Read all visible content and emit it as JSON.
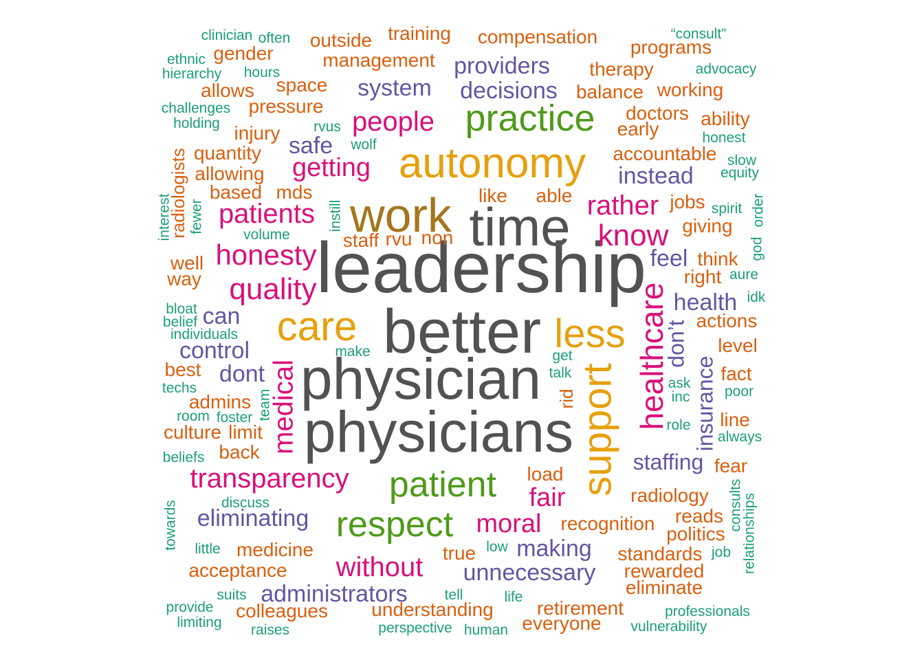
{
  "colors": {
    "gray": "#525252",
    "brown": "#a6761d",
    "gold": "#e6a00c",
    "green": "#4f9a1a",
    "magenta": "#d9107a",
    "purple": "#6355a3",
    "orange": "#d95f0e",
    "teal": "#1b9e77"
  },
  "words": [
    {
      "text": "leadership",
      "freq": 100,
      "color": "gray"
    },
    {
      "text": "better",
      "freq": 90,
      "color": "gray"
    },
    {
      "text": "physician",
      "freq": 82,
      "color": "gray"
    },
    {
      "text": "physicians",
      "freq": 82,
      "color": "gray"
    },
    {
      "text": "time",
      "freq": 72,
      "color": "gray"
    },
    {
      "text": "work",
      "freq": 66,
      "color": "brown"
    },
    {
      "text": "autonomy",
      "freq": 60,
      "color": "gold"
    },
    {
      "text": "care",
      "freq": 54,
      "color": "gold"
    },
    {
      "text": "less",
      "freq": 54,
      "color": "gold"
    },
    {
      "text": "support",
      "freq": 54,
      "color": "gold"
    },
    {
      "text": "practice",
      "freq": 50,
      "color": "green"
    },
    {
      "text": "patient",
      "freq": 50,
      "color": "green"
    },
    {
      "text": "respect",
      "freq": 50,
      "color": "green"
    },
    {
      "text": "healthcare",
      "freq": 42,
      "color": "magenta"
    },
    {
      "text": "honesty",
      "freq": 38,
      "color": "magenta"
    },
    {
      "text": "quality",
      "freq": 40,
      "color": "magenta"
    },
    {
      "text": "know",
      "freq": 40,
      "color": "magenta"
    },
    {
      "text": "transparency",
      "freq": 38,
      "color": "magenta"
    },
    {
      "text": "without",
      "freq": 38,
      "color": "magenta"
    },
    {
      "text": "people",
      "freq": 38,
      "color": "magenta"
    },
    {
      "text": "patients",
      "freq": 38,
      "color": "magenta"
    },
    {
      "text": "medical",
      "freq": 38,
      "color": "magenta"
    },
    {
      "text": "rather",
      "freq": 38,
      "color": "magenta"
    },
    {
      "text": "getting",
      "freq": 36,
      "color": "magenta"
    },
    {
      "text": "moral",
      "freq": 36,
      "color": "magenta"
    },
    {
      "text": "fair",
      "freq": 36,
      "color": "magenta"
    },
    {
      "text": "decisions",
      "freq": 32,
      "color": "purple"
    },
    {
      "text": "system",
      "freq": 32,
      "color": "purple"
    },
    {
      "text": "providers",
      "freq": 32,
      "color": "purple"
    },
    {
      "text": "instead",
      "freq": 32,
      "color": "purple"
    },
    {
      "text": "safe",
      "freq": 32,
      "color": "purple"
    },
    {
      "text": "feel",
      "freq": 32,
      "color": "purple"
    },
    {
      "text": "health",
      "freq": 32,
      "color": "purple"
    },
    {
      "text": "can",
      "freq": 32,
      "color": "purple"
    },
    {
      "text": "control",
      "freq": 32,
      "color": "purple"
    },
    {
      "text": "dont",
      "freq": 32,
      "color": "purple"
    },
    {
      "text": "don’t",
      "freq": 32,
      "color": "purple"
    },
    {
      "text": "insurance",
      "freq": 32,
      "color": "purple"
    },
    {
      "text": "staffing",
      "freq": 32,
      "color": "purple"
    },
    {
      "text": "eliminating",
      "freq": 32,
      "color": "purple"
    },
    {
      "text": "making",
      "freq": 32,
      "color": "purple"
    },
    {
      "text": "unnecessary",
      "freq": 32,
      "color": "purple"
    },
    {
      "text": "administrators",
      "freq": 32,
      "color": "purple"
    },
    {
      "text": "training",
      "freq": 26,
      "color": "orange"
    },
    {
      "text": "compensation",
      "freq": 26,
      "color": "orange"
    },
    {
      "text": "outside",
      "freq": 26,
      "color": "orange"
    },
    {
      "text": "management",
      "freq": 26,
      "color": "orange"
    },
    {
      "text": "programs",
      "freq": 26,
      "color": "orange"
    },
    {
      "text": "gender",
      "freq": 26,
      "color": "orange"
    },
    {
      "text": "therapy",
      "freq": 26,
      "color": "orange"
    },
    {
      "text": "allows",
      "freq": 26,
      "color": "orange"
    },
    {
      "text": "space",
      "freq": 26,
      "color": "orange"
    },
    {
      "text": "balance",
      "freq": 26,
      "color": "orange"
    },
    {
      "text": "working",
      "freq": 26,
      "color": "orange"
    },
    {
      "text": "pressure",
      "freq": 26,
      "color": "orange"
    },
    {
      "text": "doctors",
      "freq": 26,
      "color": "orange"
    },
    {
      "text": "ability",
      "freq": 26,
      "color": "orange"
    },
    {
      "text": "injury",
      "freq": 26,
      "color": "orange"
    },
    {
      "text": "early",
      "freq": 26,
      "color": "orange"
    },
    {
      "text": "quantity",
      "freq": 26,
      "color": "orange"
    },
    {
      "text": "accountable",
      "freq": 26,
      "color": "orange"
    },
    {
      "text": "allowing",
      "freq": 26,
      "color": "orange"
    },
    {
      "text": "radiologists",
      "freq": 26,
      "color": "orange"
    },
    {
      "text": "based",
      "freq": 26,
      "color": "orange"
    },
    {
      "text": "mds",
      "freq": 26,
      "color": "orange"
    },
    {
      "text": "like",
      "freq": 26,
      "color": "orange"
    },
    {
      "text": "able",
      "freq": 26,
      "color": "orange"
    },
    {
      "text": "jobs",
      "freq": 26,
      "color": "orange"
    },
    {
      "text": "giving",
      "freq": 26,
      "color": "orange"
    },
    {
      "text": "staff",
      "freq": 26,
      "color": "orange"
    },
    {
      "text": "rvu",
      "freq": 26,
      "color": "orange"
    },
    {
      "text": "non",
      "freq": 26,
      "color": "orange"
    },
    {
      "text": "well",
      "freq": 26,
      "color": "orange"
    },
    {
      "text": "think",
      "freq": 26,
      "color": "orange"
    },
    {
      "text": "way",
      "freq": 26,
      "color": "orange"
    },
    {
      "text": "right",
      "freq": 26,
      "color": "orange"
    },
    {
      "text": "actions",
      "freq": 26,
      "color": "orange"
    },
    {
      "text": "level",
      "freq": 26,
      "color": "orange"
    },
    {
      "text": "best",
      "freq": 26,
      "color": "orange"
    },
    {
      "text": "fact",
      "freq": 26,
      "color": "orange"
    },
    {
      "text": "admins",
      "freq": 26,
      "color": "orange"
    },
    {
      "text": "rid",
      "freq": 26,
      "color": "orange"
    },
    {
      "text": "culture",
      "freq": 26,
      "color": "orange"
    },
    {
      "text": "limit",
      "freq": 26,
      "color": "orange"
    },
    {
      "text": "line",
      "freq": 26,
      "color": "orange"
    },
    {
      "text": "back",
      "freq": 26,
      "color": "orange"
    },
    {
      "text": "fear",
      "freq": 26,
      "color": "orange"
    },
    {
      "text": "load",
      "freq": 26,
      "color": "orange"
    },
    {
      "text": "radiology",
      "freq": 26,
      "color": "orange"
    },
    {
      "text": "reads",
      "freq": 26,
      "color": "orange"
    },
    {
      "text": "recognition",
      "freq": 26,
      "color": "orange"
    },
    {
      "text": "politics",
      "freq": 26,
      "color": "orange"
    },
    {
      "text": "medicine",
      "freq": 26,
      "color": "orange"
    },
    {
      "text": "true",
      "freq": 26,
      "color": "orange"
    },
    {
      "text": "standards",
      "freq": 26,
      "color": "orange"
    },
    {
      "text": "acceptance",
      "freq": 26,
      "color": "orange"
    },
    {
      "text": "rewarded",
      "freq": 26,
      "color": "orange"
    },
    {
      "text": "eliminate",
      "freq": 26,
      "color": "orange"
    },
    {
      "text": "colleagues",
      "freq": 26,
      "color": "orange"
    },
    {
      "text": "understanding",
      "freq": 26,
      "color": "orange"
    },
    {
      "text": "retirement",
      "freq": 26,
      "color": "orange"
    },
    {
      "text": "everyone",
      "freq": 26,
      "color": "orange"
    },
    {
      "text": "clinician",
      "freq": 20,
      "color": "teal"
    },
    {
      "text": "often",
      "freq": 20,
      "color": "teal"
    },
    {
      "text": "“consult”",
      "freq": 20,
      "color": "teal"
    },
    {
      "text": "ethnic",
      "freq": 20,
      "color": "teal"
    },
    {
      "text": "hierarchy",
      "freq": 20,
      "color": "teal"
    },
    {
      "text": "hours",
      "freq": 20,
      "color": "teal"
    },
    {
      "text": "advocacy",
      "freq": 20,
      "color": "teal"
    },
    {
      "text": "challenges",
      "freq": 20,
      "color": "teal"
    },
    {
      "text": "holding",
      "freq": 20,
      "color": "teal"
    },
    {
      "text": "rvus",
      "freq": 20,
      "color": "teal"
    },
    {
      "text": "wolf",
      "freq": 20,
      "color": "teal"
    },
    {
      "text": "honest",
      "freq": 20,
      "color": "teal"
    },
    {
      "text": "slow",
      "freq": 20,
      "color": "teal"
    },
    {
      "text": "equity",
      "freq": 20,
      "color": "teal"
    },
    {
      "text": "interest",
      "freq": 20,
      "color": "teal"
    },
    {
      "text": "fewer",
      "freq": 20,
      "color": "teal"
    },
    {
      "text": "instill",
      "freq": 20,
      "color": "teal"
    },
    {
      "text": "volume",
      "freq": 20,
      "color": "teal"
    },
    {
      "text": "spirit",
      "freq": 20,
      "color": "teal"
    },
    {
      "text": "god",
      "freq": 20,
      "color": "teal"
    },
    {
      "text": "order",
      "freq": 20,
      "color": "teal"
    },
    {
      "text": "aure",
      "freq": 20,
      "color": "teal"
    },
    {
      "text": "idk",
      "freq": 20,
      "color": "teal"
    },
    {
      "text": "bloat",
      "freq": 20,
      "color": "teal"
    },
    {
      "text": "belief",
      "freq": 20,
      "color": "teal"
    },
    {
      "text": "individuals",
      "freq": 20,
      "color": "teal"
    },
    {
      "text": "make",
      "freq": 20,
      "color": "teal"
    },
    {
      "text": "get",
      "freq": 20,
      "color": "teal"
    },
    {
      "text": "talk",
      "freq": 20,
      "color": "teal"
    },
    {
      "text": "techs",
      "freq": 20,
      "color": "teal"
    },
    {
      "text": "ask",
      "freq": 20,
      "color": "teal"
    },
    {
      "text": "inc",
      "freq": 20,
      "color": "teal"
    },
    {
      "text": "poor",
      "freq": 20,
      "color": "teal"
    },
    {
      "text": "team",
      "freq": 20,
      "color": "teal"
    },
    {
      "text": "room",
      "freq": 20,
      "color": "teal"
    },
    {
      "text": "foster",
      "freq": 20,
      "color": "teal"
    },
    {
      "text": "role",
      "freq": 20,
      "color": "teal"
    },
    {
      "text": "always",
      "freq": 20,
      "color": "teal"
    },
    {
      "text": "beliefs",
      "freq": 20,
      "color": "teal"
    },
    {
      "text": "consults",
      "freq": 20,
      "color": "teal"
    },
    {
      "text": "relationships",
      "freq": 20,
      "color": "teal"
    },
    {
      "text": "towards",
      "freq": 20,
      "color": "teal"
    },
    {
      "text": "discuss",
      "freq": 20,
      "color": "teal"
    },
    {
      "text": "little",
      "freq": 20,
      "color": "teal"
    },
    {
      "text": "low",
      "freq": 20,
      "color": "teal"
    },
    {
      "text": "job",
      "freq": 20,
      "color": "teal"
    },
    {
      "text": "suits",
      "freq": 20,
      "color": "teal"
    },
    {
      "text": "tell",
      "freq": 20,
      "color": "teal"
    },
    {
      "text": "life",
      "freq": 20,
      "color": "teal"
    },
    {
      "text": "provide",
      "freq": 20,
      "color": "teal"
    },
    {
      "text": "limiting",
      "freq": 20,
      "color": "teal"
    },
    {
      "text": "raises",
      "freq": 20,
      "color": "teal"
    },
    {
      "text": "perspective",
      "freq": 20,
      "color": "teal"
    },
    {
      "text": "human",
      "freq": 20,
      "color": "teal"
    },
    {
      "text": "professionals",
      "freq": 20,
      "color": "teal"
    },
    {
      "text": "vulnerability",
      "freq": 20,
      "color": "teal"
    }
  ]
}
